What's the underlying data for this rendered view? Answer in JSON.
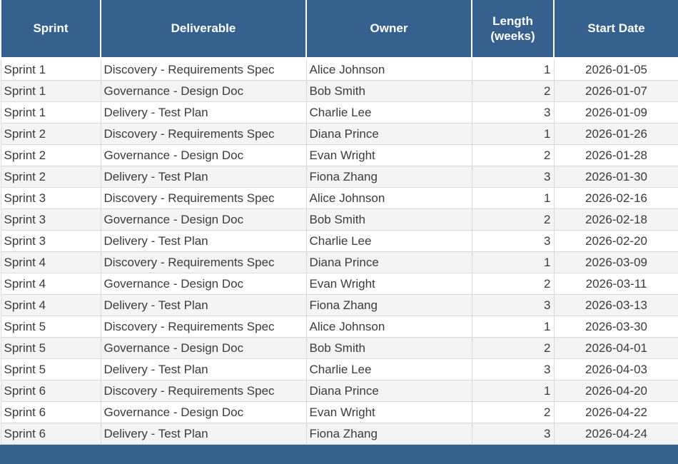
{
  "chart_data": {
    "type": "table",
    "columns": [
      {
        "key": "sprint",
        "label": "Sprint",
        "align": "left"
      },
      {
        "key": "deliverable",
        "label": "Deliverable",
        "align": "left"
      },
      {
        "key": "owner",
        "label": "Owner",
        "align": "left"
      },
      {
        "key": "length-weeks",
        "label": "Length\n(weeks)",
        "align": "right"
      },
      {
        "key": "start-date",
        "label": "Start Date",
        "align": "center"
      }
    ],
    "rows": [
      [
        "Sprint 1",
        "Discovery - Requirements Spec",
        "Alice Johnson",
        "1",
        "2026-01-05"
      ],
      [
        "Sprint 1",
        "Governance - Design Doc",
        "Bob Smith",
        "2",
        "2026-01-07"
      ],
      [
        "Sprint 1",
        "Delivery - Test Plan",
        "Charlie Lee",
        "3",
        "2026-01-09"
      ],
      [
        "Sprint 2",
        "Discovery - Requirements Spec",
        "Diana Prince",
        "1",
        "2026-01-26"
      ],
      [
        "Sprint 2",
        "Governance - Design Doc",
        "Evan Wright",
        "2",
        "2026-01-28"
      ],
      [
        "Sprint 2",
        "Delivery - Test Plan",
        "Fiona Zhang",
        "3",
        "2026-01-30"
      ],
      [
        "Sprint 3",
        "Discovery - Requirements Spec",
        "Alice Johnson",
        "1",
        "2026-02-16"
      ],
      [
        "Sprint 3",
        "Governance - Design Doc",
        "Bob Smith",
        "2",
        "2026-02-18"
      ],
      [
        "Sprint 3",
        "Delivery - Test Plan",
        "Charlie Lee",
        "3",
        "2026-02-20"
      ],
      [
        "Sprint 4",
        "Discovery - Requirements Spec",
        "Diana Prince",
        "1",
        "2026-03-09"
      ],
      [
        "Sprint 4",
        "Governance - Design Doc",
        "Evan Wright",
        "2",
        "2026-03-11"
      ],
      [
        "Sprint 4",
        "Delivery - Test Plan",
        "Fiona Zhang",
        "3",
        "2026-03-13"
      ],
      [
        "Sprint 5",
        "Discovery - Requirements Spec",
        "Alice Johnson",
        "1",
        "2026-03-30"
      ],
      [
        "Sprint 5",
        "Governance - Design Doc",
        "Bob Smith",
        "2",
        "2026-04-01"
      ],
      [
        "Sprint 5",
        "Delivery - Test Plan",
        "Charlie Lee",
        "3",
        "2026-04-03"
      ],
      [
        "Sprint 6",
        "Discovery - Requirements Spec",
        "Diana Prince",
        "1",
        "2026-04-20"
      ],
      [
        "Sprint 6",
        "Governance - Design Doc",
        "Evan Wright",
        "2",
        "2026-04-22"
      ],
      [
        "Sprint 6",
        "Delivery - Test Plan",
        "Fiona Zhang",
        "3",
        "2026-04-24"
      ]
    ]
  },
  "colors": {
    "header_bg": "#36618F",
    "header_text": "#FFFFFF",
    "row_bg": "#FFFFFF",
    "row_alt_bg": "#F4F4F4",
    "cell_border": "#D9D9D9",
    "body_text": "#3B3B3B",
    "bottom_bar": "#36618F"
  }
}
